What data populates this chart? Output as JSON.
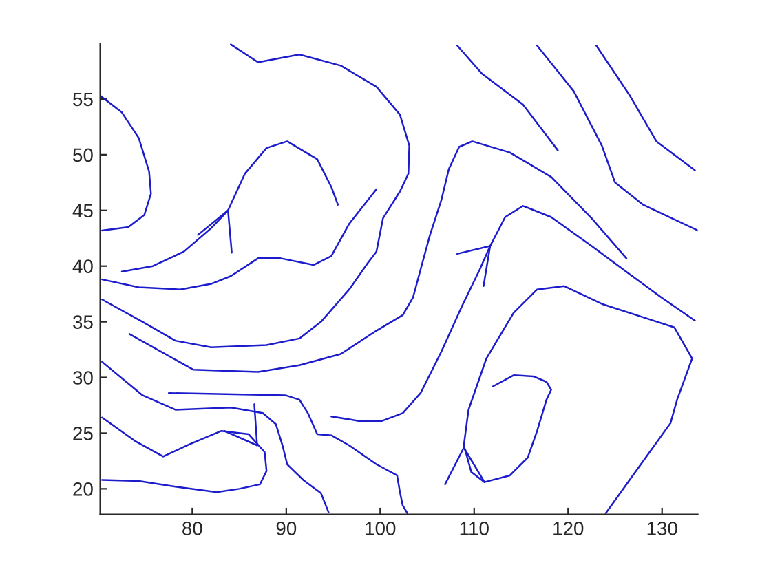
{
  "chart_data": {
    "type": "line",
    "xlim": [
      70.2,
      133.8
    ],
    "ylim": [
      17.7,
      60
    ],
    "xticks": [
      80,
      90,
      100,
      110,
      120,
      130
    ],
    "yticks": [
      20,
      25,
      30,
      35,
      40,
      45,
      50,
      55
    ],
    "grid": false,
    "legend": false,
    "marker": "none",
    "line_style": "solid",
    "series": [
      {
        "color": "#1c1ccc",
        "x": [
          70.2,
          72.5,
          74.3,
          75.4,
          75.6,
          74.9,
          73.2,
          70.4
        ],
        "values": [
          55.3,
          53.8,
          51.5,
          48.5,
          46.5,
          44.6,
          43.5,
          43.2
        ]
      },
      {
        "color": "#1c1ccc",
        "x": [
          84.1,
          87.0,
          91.4,
          95.8,
          99.6,
          102.1,
          103.1,
          103.0,
          102.1,
          100.3,
          99.6,
          98.7,
          96.7,
          93.7,
          91.4,
          87.9,
          82.0,
          78.2,
          74.7,
          70.4
        ],
        "values": [
          59.9,
          58.3,
          59.0,
          58.0,
          56.1,
          53.6,
          50.8,
          48.3,
          46.7,
          44.3,
          41.3,
          40.3,
          37.9,
          35.0,
          33.5,
          32.9,
          32.7,
          33.3,
          35.0,
          37.0
        ]
      },
      {
        "color": "#1c1ccc",
        "x": [
          84.2,
          83.8,
          85.6,
          87.9,
          90.1,
          93.3,
          94.8,
          95.5
        ],
        "values": [
          41.2,
          45.0,
          48.3,
          50.6,
          51.2,
          49.6,
          47.1,
          45.5
        ]
      },
      {
        "color": "#1c1ccc",
        "x": [
          72.5,
          75.8,
          79.1,
          82.0,
          83.8
        ],
        "values": [
          39.5,
          40.0,
          41.3,
          43.4,
          45.0
        ]
      },
      {
        "color": "#1c1ccc",
        "x": [
          80.6,
          83.8
        ],
        "values": [
          42.8,
          45.0
        ]
      },
      {
        "color": "#1c1ccc",
        "x": [
          70.4,
          74.3,
          78.7,
          82.0,
          84.1,
          87.0,
          89.4,
          92.9,
          94.8,
          96.7,
          99.6
        ],
        "values": [
          38.8,
          38.1,
          37.9,
          38.4,
          39.1,
          40.7,
          40.7,
          40.1,
          40.9,
          43.8,
          46.9
        ]
      },
      {
        "color": "#1c1ccc",
        "x": [
          73.3,
          80.1,
          87.0,
          91.4,
          95.8,
          99.6,
          102.4,
          103.5,
          104.3,
          105.3,
          106.5,
          107.3,
          108.4,
          109.8,
          113.8,
          118.2,
          122.5,
          126.2
        ],
        "values": [
          33.9,
          30.7,
          30.5,
          31.1,
          32.1,
          34.2,
          35.6,
          37.2,
          39.7,
          42.8,
          45.9,
          48.7,
          50.7,
          51.2,
          50.2,
          48.0,
          44.3,
          40.7
        ]
      },
      {
        "color": "#1c1ccc",
        "x": [
          70.4,
          74.7,
          78.2,
          84.1,
          87.5,
          88.9,
          89.6,
          90.1,
          91.8,
          93.7,
          94.5
        ],
        "values": [
          31.4,
          28.4,
          27.1,
          27.3,
          26.8,
          25.8,
          23.9,
          22.2,
          20.8,
          19.6,
          17.9
        ]
      },
      {
        "color": "#1c1ccc",
        "x": [
          77.5,
          89.9,
          91.4,
          92.3,
          93.3,
          94.8,
          96.7,
          99.6,
          101.8,
          102.1,
          102.4,
          102.9
        ],
        "values": [
          28.6,
          28.4,
          28.0,
          26.8,
          24.9,
          24.8,
          23.9,
          22.2,
          21.2,
          19.7,
          18.5,
          17.8
        ]
      },
      {
        "color": "#1c1ccc",
        "x": [
          70.4,
          73.9,
          76.9,
          79.7,
          83.1,
          86.0,
          87.7,
          87.9,
          87.2,
          85.0,
          82.6,
          78.2,
          74.3,
          70.4
        ],
        "values": [
          26.4,
          24.3,
          22.9,
          24.0,
          25.2,
          24.9,
          23.3,
          21.6,
          20.4,
          20.0,
          19.7,
          20.2,
          20.7,
          20.8
        ]
      },
      {
        "color": "#1c1ccc",
        "x": [
          86.6,
          86.9
        ],
        "values": [
          27.6,
          23.9
        ]
      },
      {
        "color": "#1c1ccc",
        "x": [
          83.4,
          86.9
        ],
        "values": [
          25.2,
          23.9
        ]
      },
      {
        "color": "#1c1ccc",
        "x": [
          94.8,
          97.7,
          100.2,
          102.4,
          104.3,
          106.5,
          108.7,
          110.6,
          111.7,
          113.3,
          115.2,
          118.2,
          122.5,
          126.5,
          129.9,
          133.5
        ],
        "values": [
          26.5,
          26.1,
          26.1,
          26.8,
          28.6,
          32.3,
          36.4,
          39.7,
          41.8,
          44.4,
          45.4,
          44.4,
          41.8,
          39.3,
          37.2,
          35.1
        ]
      },
      {
        "color": "#1c1ccc",
        "x": [
          108.2,
          111.7
        ],
        "values": [
          41.1,
          41.8
        ]
      },
      {
        "color": "#1c1ccc",
        "x": [
          111.0,
          111.7
        ],
        "values": [
          38.2,
          41.8
        ]
      },
      {
        "color": "#1c1ccc",
        "x": [
          108.2,
          110.8,
          115.2,
          118.9
        ],
        "values": [
          59.8,
          57.3,
          54.5,
          50.4
        ]
      },
      {
        "color": "#1c1ccc",
        "x": [
          116.7,
          120.6,
          123.6,
          125.0,
          128.0,
          133.8
        ],
        "values": [
          59.8,
          55.7,
          50.8,
          47.5,
          45.5,
          43.2
        ]
      },
      {
        "color": "#1c1ccc",
        "x": [
          123.0,
          126.5,
          129.4,
          133.5
        ],
        "values": [
          59.8,
          55.4,
          51.2,
          48.6
        ]
      },
      {
        "color": "#1c1ccc",
        "x": [
          124.0,
          127.4,
          130.9,
          131.6,
          133.2,
          131.3,
          128.0,
          123.6,
          119.6,
          116.7,
          114.2,
          111.3,
          109.4,
          108.9,
          109.7,
          111.1,
          113.8,
          115.7,
          116.7,
          117.7,
          118.2,
          117.7,
          116.3,
          114.2,
          112.0
        ],
        "values": [
          17.8,
          21.8,
          25.9,
          28.0,
          31.7,
          34.5,
          35.4,
          36.6,
          38.2,
          37.9,
          35.8,
          31.7,
          27.1,
          23.9,
          21.5,
          20.6,
          21.2,
          22.8,
          25.2,
          28.0,
          28.9,
          29.6,
          30.1,
          30.2,
          29.2
        ]
      },
      {
        "color": "#1c1ccc",
        "x": [
          106.9,
          108.9
        ],
        "values": [
          20.4,
          23.7
        ]
      },
      {
        "color": "#1c1ccc",
        "x": [
          108.9,
          111.1
        ],
        "values": [
          23.7,
          20.6
        ]
      }
    ]
  }
}
